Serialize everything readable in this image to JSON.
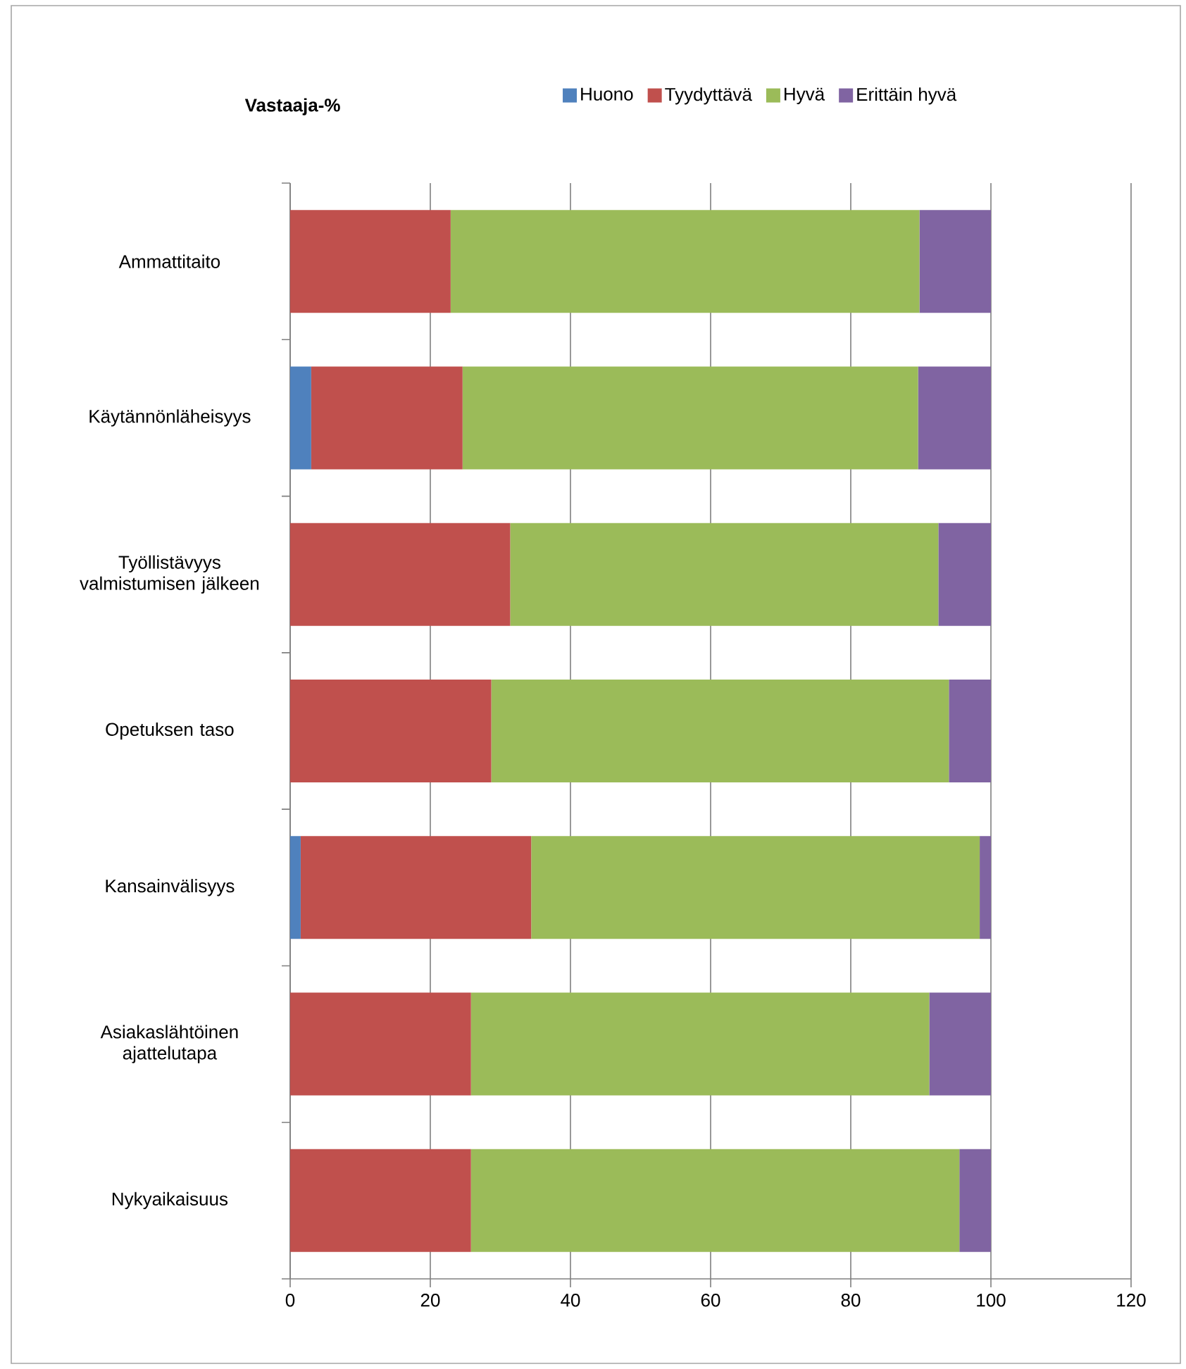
{
  "chart_data": {
    "type": "bar",
    "orientation": "horizontal",
    "stacked": true,
    "title": "Vastaaja-%",
    "categories": [
      "Ammattitaito",
      "Käytännönläheisyys",
      "Työllistävyys valmistumisen jälkeen",
      "Opetuksen taso",
      "Kansainvälisyys",
      "Asiakaslähtöinen ajattelutapa",
      "Nykyaikaisuus"
    ],
    "series": [
      {
        "name": "Huono",
        "color": "#4f81bd",
        "values": [
          0,
          3.0,
          0,
          0,
          1.5,
          0,
          0
        ]
      },
      {
        "name": "Tyydyttävä",
        "color": "#c0504d",
        "values": [
          22.9,
          21.6,
          31.4,
          28.7,
          32.9,
          25.8,
          25.8
        ]
      },
      {
        "name": "Hyvä",
        "color": "#9bbb59",
        "values": [
          66.9,
          65.0,
          61.1,
          65.3,
          64.0,
          65.4,
          69.7
        ]
      },
      {
        "name": "Erittäin hyvä",
        "color": "#8064a2",
        "values": [
          10.2,
          10.4,
          7.5,
          6.0,
          1.6,
          8.8,
          4.5
        ]
      }
    ],
    "xlim": [
      0,
      120
    ],
    "xticks": [
      0,
      20,
      40,
      60,
      80,
      100,
      120
    ],
    "grid": "x",
    "legend": "top"
  }
}
